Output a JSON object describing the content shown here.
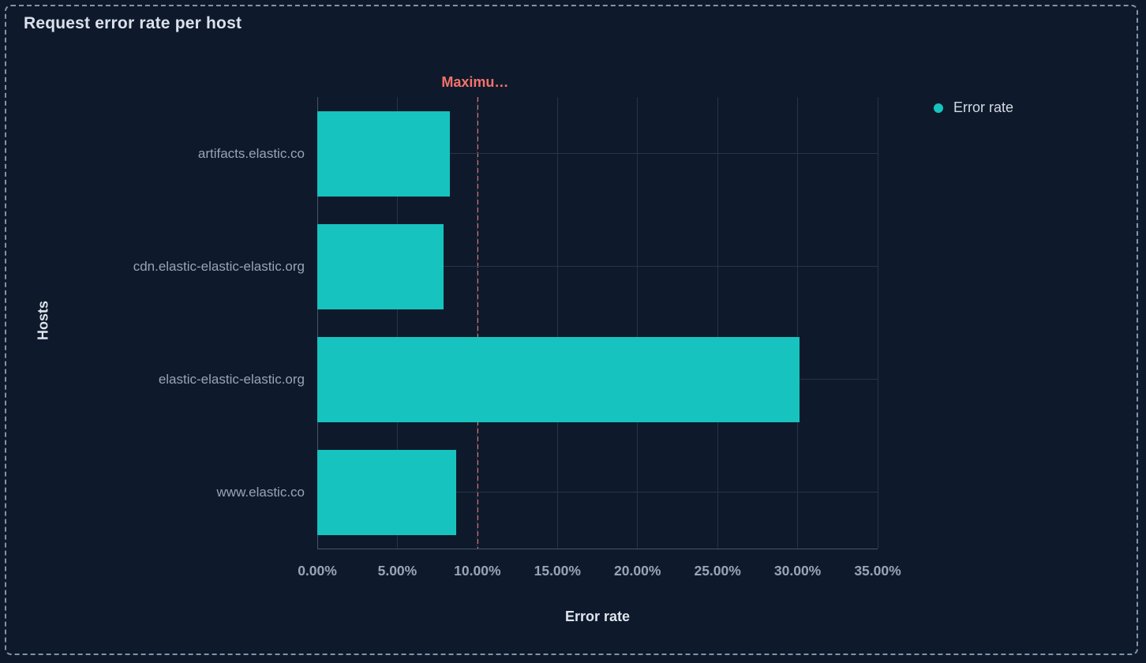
{
  "panel": {
    "title": "Request error rate per host"
  },
  "legend": {
    "items": [
      {
        "label": "Error rate",
        "color": "#17c3be"
      }
    ]
  },
  "chart_data": {
    "type": "bar",
    "orientation": "horizontal",
    "title": "Request error rate per host",
    "xlabel": "Error rate",
    "ylabel": "Hosts",
    "categories": [
      "artifacts.elastic.co",
      "cdn.elastic-elastic-elastic.org",
      "elastic-elastic-elastic.org",
      "www.elastic.co"
    ],
    "series": [
      {
        "name": "Error rate",
        "values": [
          8.3,
          7.9,
          30.1,
          8.7
        ],
        "color": "#17c3be"
      }
    ],
    "xlim": [
      0,
      35
    ],
    "x_ticks": [
      0,
      5,
      10,
      15,
      20,
      25,
      30,
      35
    ],
    "x_tick_labels": [
      "0.00%",
      "5.00%",
      "10.00%",
      "15.00%",
      "20.00%",
      "25.00%",
      "30.00%",
      "35.00%"
    ],
    "grid": true,
    "legend_position": "top-right",
    "annotation": {
      "label": "Maximu…",
      "x": 10,
      "color": "#f6726a",
      "style": "dashed"
    }
  },
  "colors": {
    "background": "#0e1a2b",
    "bar": "#17c3be",
    "annotation": "#f6726a",
    "gridline": "#26334a",
    "axis_line": "#44546d",
    "panel_border": "#8293ad",
    "text_primary": "#dbe1ec",
    "text_muted": "#98a3b7"
  }
}
